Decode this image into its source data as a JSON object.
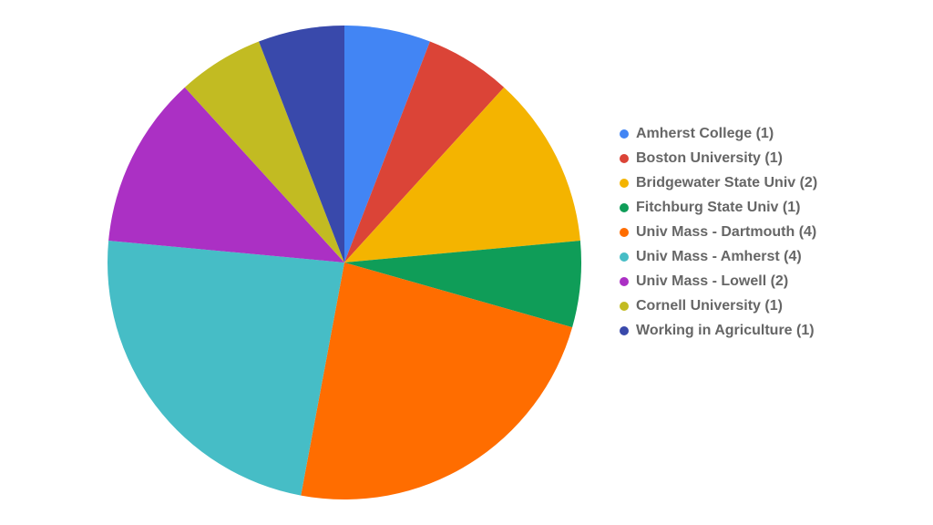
{
  "chart_data": {
    "type": "pie",
    "categories": [
      "Amherst College (1)",
      "Boston University (1)",
      "Bridgewater State Univ (2)",
      "Fitchburg State Univ (1)",
      "Univ Mass - Dartmouth (4)",
      "Univ Mass - Amherst (4)",
      "Univ Mass - Lowell (2)",
      "Cornell University (1)",
      "Working in Agriculture (1)"
    ],
    "values": [
      1,
      1,
      2,
      1,
      4,
      4,
      2,
      1,
      1
    ],
    "colors": [
      "#4285f4",
      "#db4437",
      "#f4b400",
      "#0f9d58",
      "#ff6d00",
      "#46bdc6",
      "#ab30c4",
      "#c2bb22",
      "#3949ab"
    ],
    "legend": "right"
  }
}
